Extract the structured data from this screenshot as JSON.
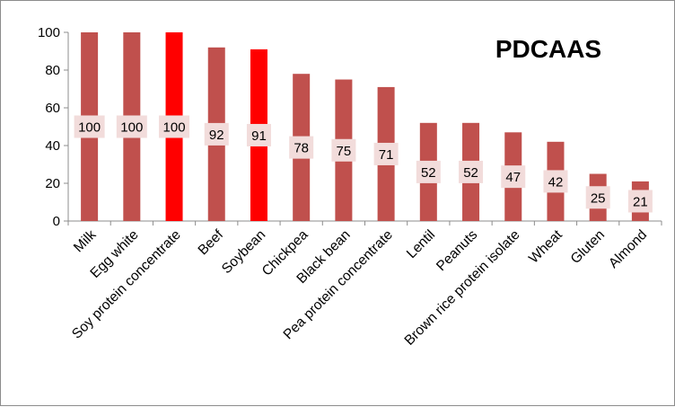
{
  "chart_data": {
    "type": "bar",
    "title": "PDCAAS",
    "xlabel": "",
    "ylabel": "",
    "ylim": [
      0,
      100
    ],
    "yticks": [
      0,
      20,
      40,
      60,
      80,
      100
    ],
    "grid": false,
    "legend": "none",
    "categories": [
      "Milk",
      "Egg white",
      "Soy protein concentrate",
      "Beef",
      "Soybean",
      "Chickpea",
      "Black bean",
      "Pea protein concentrate",
      "Lentil",
      "Peanuts",
      "Brown rice protein isolate",
      "Wheat",
      "Gluten",
      "Almond"
    ],
    "values": [
      100,
      100,
      100,
      92,
      91,
      78,
      75,
      71,
      52,
      52,
      47,
      42,
      25,
      21
    ],
    "bar_colors": [
      "#c0504d",
      "#c0504d",
      "#ff0000",
      "#c0504d",
      "#ff0000",
      "#c0504d",
      "#c0504d",
      "#c0504d",
      "#c0504d",
      "#c0504d",
      "#c0504d",
      "#c0504d",
      "#c0504d",
      "#c0504d"
    ],
    "label_background": "#f2dcdb"
  }
}
